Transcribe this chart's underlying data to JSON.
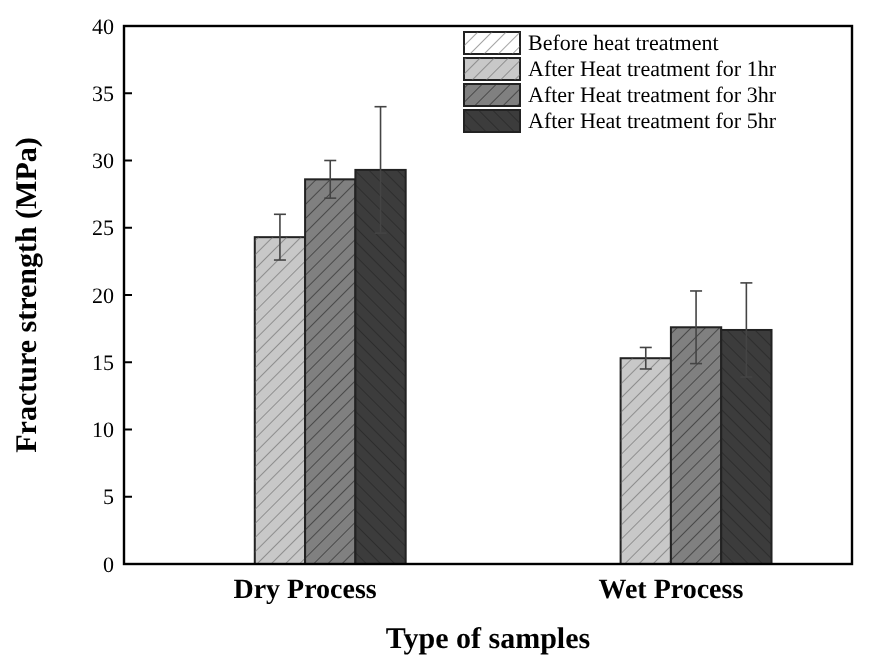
{
  "chart_data": {
    "type": "bar",
    "xlabel": "Type of samples",
    "ylabel": "Fracture strength (MPa)",
    "categories": [
      "Dry Process",
      "Wet Process"
    ],
    "series": [
      {
        "name": "Before heat treatment",
        "color": "#ffffff",
        "values": [
          null,
          null
        ]
      },
      {
        "name": "After Heat treatment for 1hr",
        "color": "#c8c8c8",
        "values": [
          24.3,
          15.3
        ],
        "errors": [
          1.7,
          0.8
        ]
      },
      {
        "name": "After Heat treatment for 3hr",
        "color": "#808080",
        "values": [
          28.6,
          17.6
        ],
        "errors": [
          1.4,
          2.7
        ]
      },
      {
        "name": "After Heat treatment for 5hr",
        "color": "#3c3c3c",
        "values": [
          29.3,
          17.4
        ],
        "errors": [
          4.7,
          3.5
        ]
      }
    ],
    "ylim": [
      0,
      40
    ],
    "yticks": [
      0,
      5,
      10,
      15,
      20,
      25,
      30,
      35,
      40
    ],
    "legend": "top right",
    "grid": false
  }
}
